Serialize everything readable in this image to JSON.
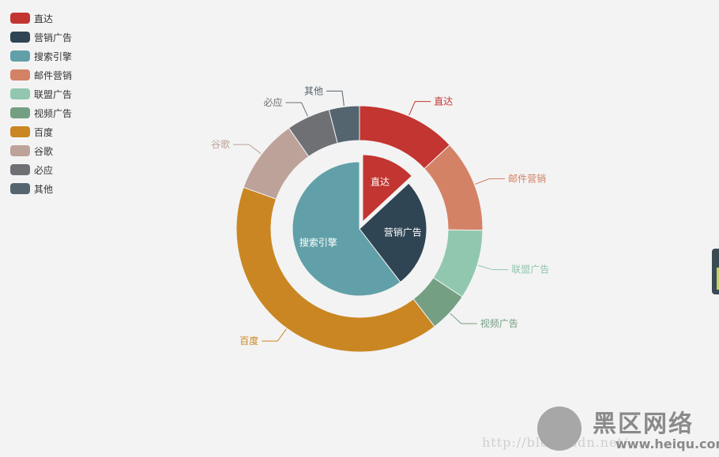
{
  "chart_data": {
    "type": "pie",
    "inner": {
      "slices": [
        {
          "name": "直达",
          "value": 335
        },
        {
          "name": "营销广告",
          "value": 679
        },
        {
          "name": "搜索引擎",
          "value": 1548
        }
      ]
    },
    "outer": {
      "slices": [
        {
          "name": "直达",
          "value": 335
        },
        {
          "name": "邮件营销",
          "value": 310
        },
        {
          "name": "联盟广告",
          "value": 234
        },
        {
          "name": "视频广告",
          "value": 135
        },
        {
          "name": "百度",
          "value": 1048
        },
        {
          "name": "谷歌",
          "value": 251
        },
        {
          "name": "必应",
          "value": 147
        },
        {
          "name": "其他",
          "value": 102
        }
      ]
    },
    "legend": [
      "直达",
      "营销广告",
      "搜索引擎",
      "邮件营销",
      "联盟广告",
      "视频广告",
      "百度",
      "谷歌",
      "必应",
      "其他"
    ],
    "legend_position": "top-left",
    "colors": {
      "直达": "#c23531",
      "营销广告": "#2f4554",
      "搜索引擎": "#61a0a8",
      "邮件营销": "#d48265",
      "联盟广告": "#91c7ae",
      "视频广告": "#749f83",
      "百度": "#ca8622",
      "谷歌": "#bda29a",
      "必应": "#6e7074",
      "其他": "#546570"
    },
    "selected": "直达"
  },
  "watermark": {
    "url_text": "http://blog.csdn.net/...",
    "brand_title": "黑区网络",
    "brand_url": "www.heiqu.com"
  }
}
